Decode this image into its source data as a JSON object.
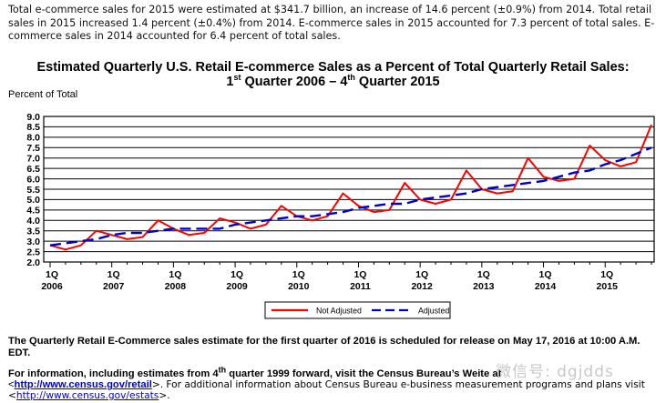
{
  "intro": {
    "text": "Total e-commerce sales for 2015 were estimated at $341.7 billion, an increase of 14.6 percent (±0.9%) from 2014. Total retail sales in 2015 increased 1.4 percent (±0.4%) from 2014. E-commerce sales in 2015 accounted for 7.3 percent of total sales. E-commerce sales in 2014 accounted for 6.4 percent of total sales."
  },
  "chart_data": {
    "type": "line",
    "title": "Estimated Quarterly U.S. Retail E-commerce Sales as a Percent of Total Quarterly Retail Sales:",
    "subtitle": {
      "q1_num": "1",
      "q1_sup": "st",
      "q1_rest": " Quarter 2006 – ",
      "q4_num": "4",
      "q4_sup": "th",
      "q4_rest": " Quarter 2015"
    },
    "ylabel": "Percent of Total",
    "xlabel": "",
    "ylim": [
      2.0,
      9.0
    ],
    "yticks": [
      "2.0",
      "2.5",
      "3.0",
      "3.5",
      "4.0",
      "4.5",
      "5.0",
      "5.5",
      "6.0",
      "6.5",
      "7.0",
      "7.5",
      "8.0",
      "8.5",
      "9.0"
    ],
    "grid": true,
    "x_tick_labels": [
      {
        "q": "1Q",
        "year": "2006"
      },
      {
        "q": "1Q",
        "year": "2007"
      },
      {
        "q": "1Q",
        "year": "2008"
      },
      {
        "q": "1Q",
        "year": "2009"
      },
      {
        "q": "1Q",
        "year": "2010"
      },
      {
        "q": "1Q",
        "year": "2011"
      },
      {
        "q": "1Q",
        "year": "2012"
      },
      {
        "q": "1Q",
        "year": "2013"
      },
      {
        "q": "1Q",
        "year": "2014"
      },
      {
        "q": "1Q",
        "year": "2015"
      }
    ],
    "quarters_per_year": 4,
    "legend_position": "bottom-center",
    "series": [
      {
        "name": "Not Adjusted",
        "color": "#ff0000",
        "style": "solid",
        "values": [
          2.8,
          2.6,
          2.8,
          3.5,
          3.3,
          3.1,
          3.2,
          4.0,
          3.6,
          3.3,
          3.4,
          4.1,
          3.9,
          3.6,
          3.8,
          4.7,
          4.2,
          4.0,
          4.2,
          5.3,
          4.7,
          4.4,
          4.5,
          5.8,
          5.0,
          4.8,
          5.0,
          6.4,
          5.5,
          5.3,
          5.4,
          7.0,
          6.1,
          5.9,
          6.0,
          7.6,
          6.9,
          6.6,
          6.8,
          8.6
        ]
      },
      {
        "name": "Adjusted",
        "color": "#0000cc",
        "style": "dashed",
        "values": [
          2.8,
          2.9,
          3.0,
          3.1,
          3.3,
          3.4,
          3.4,
          3.5,
          3.6,
          3.6,
          3.6,
          3.6,
          3.8,
          3.9,
          4.0,
          4.1,
          4.2,
          4.2,
          4.3,
          4.4,
          4.6,
          4.7,
          4.8,
          4.8,
          5.0,
          5.1,
          5.2,
          5.3,
          5.5,
          5.6,
          5.7,
          5.8,
          5.9,
          6.1,
          6.3,
          6.4,
          6.7,
          6.9,
          7.2,
          7.5
        ]
      }
    ]
  },
  "footer": {
    "release": "The Quarterly Retail E-Commerce sales estimate for the first quarter of 2016 is scheduled for release on May 17, 2016 at 10:00 A.M. EDT.",
    "info_prefix": "For information, including estimates from ",
    "info_sup_num": "4",
    "info_sup": "th",
    "info_suffix": " quarter 1999 forward, visit the Census Bureau’s We",
    "info_cut": "ite at",
    "line2_prefix": "<",
    "retail_link": "http://www.census.gov/retail",
    "line2_suffix": ">. For additional information about Census Bureau e-business measurement programs and plans visit",
    "line3_prefix": "<",
    "estats_link": "http://www.census.gov/estats",
    "line3_suffix": ">."
  },
  "watermark": "微信号: dgjdds"
}
